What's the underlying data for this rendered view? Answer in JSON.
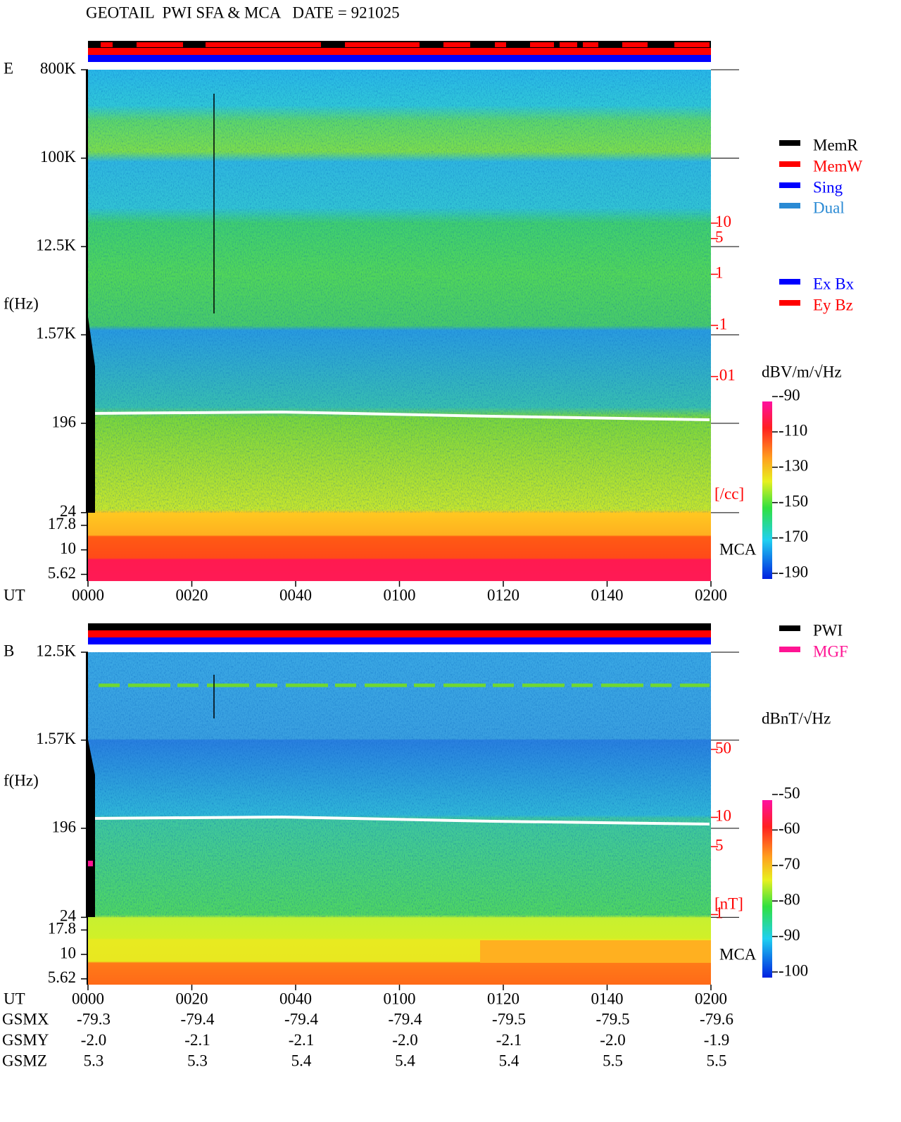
{
  "title": "GEOTAIL  PWI SFA & MCA   DATE = 921025",
  "chart_data": [
    {
      "type": "heatmap",
      "panel_label": "E",
      "ylabel": "f(Hz)",
      "xlabel": "UT",
      "yscale": "log",
      "xlim": [
        0,
        120
      ],
      "xticks": [
        {
          "value": 0,
          "label": "0000"
        },
        {
          "value": 20,
          "label": "0020"
        },
        {
          "value": 40,
          "label": "0040"
        },
        {
          "value": 60,
          "label": "0100"
        },
        {
          "value": 80,
          "label": "0120"
        },
        {
          "value": 100,
          "label": "0140"
        },
        {
          "value": 120,
          "label": "0200"
        }
      ],
      "ylim": [
        4.8,
        800000
      ],
      "yticks": [
        {
          "value": 800000,
          "label": "800K"
        },
        {
          "value": 100000,
          "label": "100K"
        },
        {
          "value": 12500,
          "label": "12.5K"
        },
        {
          "value": 1570,
          "label": "1.57K"
        },
        196,
        24,
        17.8,
        10,
        5.62
      ],
      "y2scale": "log",
      "y2lim": [
        1e-06,
        10000
      ],
      "y2ticks": [
        10,
        5,
        1,
        {
          "value": 0.1,
          "label": ".1"
        },
        {
          "value": 0.01,
          "label": ".01"
        }
      ],
      "y2label": "[/cc]",
      "region_label": "MCA",
      "colorbar": {
        "label": "dBV/m/√Hz",
        "clim": [
          -190,
          -90
        ],
        "ticks": [
          -90,
          -110,
          -130,
          -150,
          -170,
          -190
        ]
      },
      "legend": [
        [
          {
            "name": "MemR",
            "color": "#000000"
          },
          {
            "name": "MemW",
            "color": "#ff0000"
          },
          {
            "name": "Sing",
            "color": "#0000ff"
          },
          {
            "name": "Dual",
            "color": "#2a8ad4"
          }
        ],
        [
          {
            "name": "Ex Bx",
            "color": "#0000ff"
          },
          {
            "name": "Ey Bz",
            "color": "#ff0000"
          }
        ]
      ]
    },
    {
      "type": "heatmap",
      "panel_label": "B",
      "ylabel": "f(Hz)",
      "xlabel": "UT",
      "yscale": "log",
      "xlim": [
        0,
        120
      ],
      "xticks": [
        {
          "value": 0,
          "label": "0000"
        },
        {
          "value": 20,
          "label": "0020"
        },
        {
          "value": 40,
          "label": "0040"
        },
        {
          "value": 60,
          "label": "0100"
        },
        {
          "value": 80,
          "label": "0120"
        },
        {
          "value": 100,
          "label": "0140"
        },
        {
          "value": 120,
          "label": "0200"
        }
      ],
      "ylim": [
        4.9,
        12500
      ],
      "yticks": [
        {
          "value": 12500,
          "label": "12.5K"
        },
        {
          "value": 1570,
          "label": "1.57K"
        },
        196,
        24,
        17.8,
        10,
        5.62
      ],
      "y2scale": "log",
      "y2lim": [
        0.19,
        500
      ],
      "y2ticks": [
        50,
        10,
        5,
        1
      ],
      "y2label": "[nT]",
      "region_label": "MCA",
      "colorbar": {
        "label": "dBnT/√Hz",
        "clim": [
          -100,
          -50
        ],
        "ticks": [
          -50,
          -60,
          -70,
          -80,
          -90,
          -100
        ]
      },
      "legend": [
        [
          {
            "name": "PWI",
            "color": "#000000"
          },
          {
            "name": "MGF",
            "color": "#ff1493"
          }
        ]
      ]
    }
  ],
  "orbit_table": {
    "rows": [
      {
        "name": "GSMX",
        "values": [
          "-79.3",
          "-79.4",
          "-79.4",
          "-79.4",
          "-79.5",
          "-79.5",
          "-79.6"
        ]
      },
      {
        "name": "GSMY",
        "values": [
          "-2.0",
          "-2.1",
          "-2.1",
          "-2.0",
          "-2.1",
          "-2.0",
          "-1.9"
        ]
      },
      {
        "name": "GSMZ",
        "values": [
          "5.3",
          "5.3",
          "5.4",
          "5.4",
          "5.4",
          "5.5",
          "5.5"
        ]
      }
    ]
  }
}
